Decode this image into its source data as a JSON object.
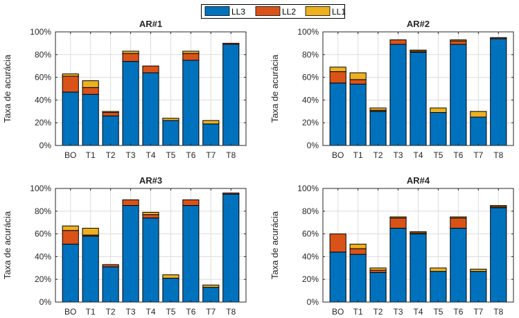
{
  "legend": [
    {
      "name": "LL3",
      "color": "#0072BD"
    },
    {
      "name": "LL2",
      "color": "#D95319"
    },
    {
      "name": "LL1",
      "color": "#EDB120"
    }
  ],
  "chart_data": [
    {
      "type": "bar",
      "stacked": true,
      "title": "AR#1",
      "ylabel": "Taxa de acurácia",
      "categories": [
        "BO",
        "T1",
        "T2",
        "T3",
        "T4",
        "T5",
        "T6",
        "T7",
        "T8"
      ],
      "ylim": [
        0,
        100
      ],
      "yticks": [
        "0%",
        "20%",
        "40%",
        "60%",
        "80%",
        "100%"
      ],
      "grid": true,
      "series": [
        {
          "name": "LL3",
          "values": [
            47,
            45,
            26,
            74,
            64,
            22,
            75,
            19,
            89
          ]
        },
        {
          "name": "LL2",
          "values": [
            14,
            6,
            3,
            7,
            6,
            0,
            6,
            0,
            1
          ]
        },
        {
          "name": "LL1",
          "values": [
            2,
            6,
            1,
            2,
            0,
            2,
            2,
            3,
            0
          ]
        }
      ]
    },
    {
      "type": "bar",
      "stacked": true,
      "title": "AR#2",
      "ylabel": "Taxa de acurácia",
      "categories": [
        "BO",
        "T1",
        "T2",
        "T3",
        "T4",
        "T5",
        "T6",
        "T7",
        "T8"
      ],
      "ylim": [
        0,
        100
      ],
      "yticks": [
        "0%",
        "20%",
        "40%",
        "60%",
        "80%",
        "100%"
      ],
      "grid": true,
      "series": [
        {
          "name": "LL3",
          "values": [
            55,
            54,
            30,
            89,
            82,
            29,
            89,
            25,
            94
          ]
        },
        {
          "name": "LL2",
          "values": [
            10,
            4,
            1,
            4,
            1,
            0,
            3,
            0,
            1
          ]
        },
        {
          "name": "LL1",
          "values": [
            4,
            6,
            2,
            0,
            1,
            4,
            1,
            5,
            0
          ]
        }
      ]
    },
    {
      "type": "bar",
      "stacked": true,
      "title": "AR#3",
      "ylabel": "Taxa de acurácia",
      "categories": [
        "BO",
        "T1",
        "T2",
        "T3",
        "T4",
        "T5",
        "T6",
        "T7",
        "T8"
      ],
      "ylim": [
        0,
        100
      ],
      "yticks": [
        "0%",
        "20%",
        "40%",
        "60%",
        "80%",
        "100%"
      ],
      "grid": true,
      "series": [
        {
          "name": "LL3",
          "values": [
            51,
            58,
            31,
            85,
            74,
            21,
            85,
            13,
            95
          ]
        },
        {
          "name": "LL2",
          "values": [
            12,
            1,
            2,
            5,
            3,
            0,
            5,
            0,
            1
          ]
        },
        {
          "name": "LL1",
          "values": [
            4,
            6,
            0,
            0,
            2,
            3,
            0,
            2,
            0
          ]
        }
      ]
    },
    {
      "type": "bar",
      "stacked": true,
      "title": "AR#4",
      "ylabel": "Taxa de acurácia",
      "categories": [
        "BO",
        "T1",
        "T2",
        "T3",
        "T4",
        "T5",
        "T6",
        "T7",
        "T8"
      ],
      "ylim": [
        0,
        100
      ],
      "yticks": [
        "0%",
        "20%",
        "40%",
        "60%",
        "80%",
        "100%"
      ],
      "grid": true,
      "series": [
        {
          "name": "LL3",
          "values": [
            44,
            42,
            26,
            65,
            60,
            27,
            65,
            27,
            83
          ]
        },
        {
          "name": "LL2",
          "values": [
            16,
            5,
            2,
            9,
            1,
            0,
            9,
            0,
            1
          ]
        },
        {
          "name": "LL1",
          "values": [
            0,
            4,
            2,
            1,
            1,
            3,
            1,
            2,
            1
          ]
        }
      ]
    }
  ]
}
